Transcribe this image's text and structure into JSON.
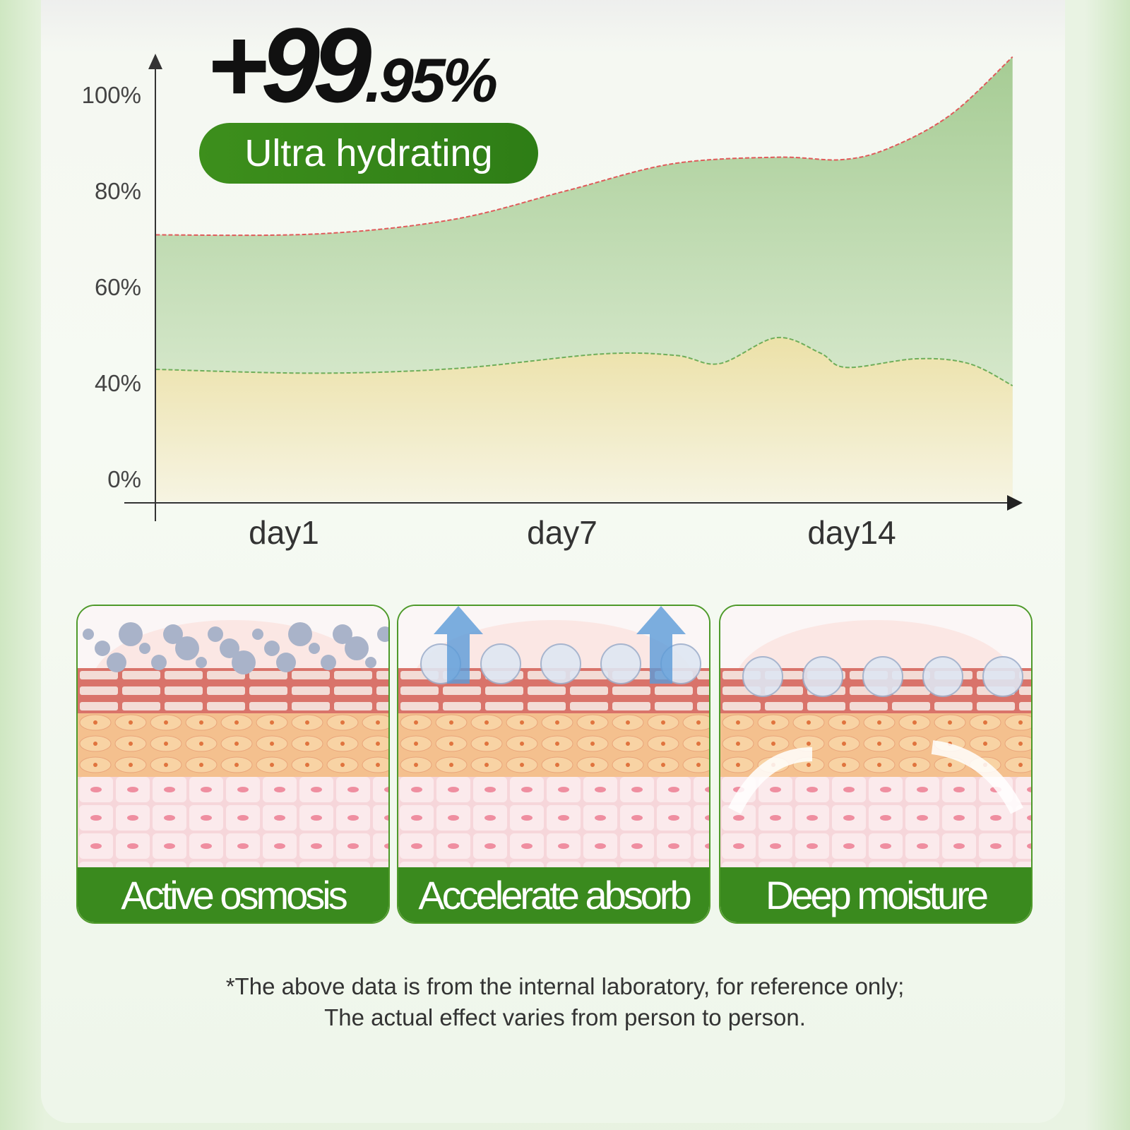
{
  "headline": {
    "whole": "+99",
    "fraction": ".95%"
  },
  "badge": "Ultra hydrating",
  "chart_data": {
    "type": "area",
    "y_ticks": [
      "100%",
      "80%",
      "60%",
      "40%",
      "0%"
    ],
    "x_ticks": [
      "day1",
      "day7",
      "day14"
    ],
    "grid": false,
    "x_unit": "day",
    "series": [
      {
        "x": [
          -1.9,
          1.8,
          4.9,
          7.5,
          9.9,
          12.3,
          13.8,
          14.9,
          16.3,
          17.7
        ],
        "y": [
          70.8,
          71,
          74,
          80,
          85.6,
          87,
          86.5,
          89,
          96,
          108
        ],
        "color": "#a9cf98",
        "line_color": "#e05a5a"
      },
      {
        "x": [
          -1.9,
          1.8,
          5.0,
          8.3,
          10.0,
          11.0,
          12.3,
          13.3,
          13.9,
          15.5,
          16.7,
          17.7
        ],
        "y": [
          42.8,
          42,
          43,
          46,
          45.7,
          44,
          49.4,
          46.2,
          43.2,
          45,
          44,
          38.8
        ],
        "color": "#efe3b0",
        "line_color": "#6fae5a"
      }
    ]
  },
  "panels": [
    {
      "label": "Active osmosis"
    },
    {
      "label": "Accelerate absorb"
    },
    {
      "label": "Deep moisture"
    }
  ],
  "footnote": {
    "line1": "*The above data is from the internal laboratory, for reference only;",
    "line2": "The actual effect varies from person to person."
  },
  "colors": {
    "brand_green": "#3a8a1e",
    "accent_red": "#e05a5a"
  }
}
